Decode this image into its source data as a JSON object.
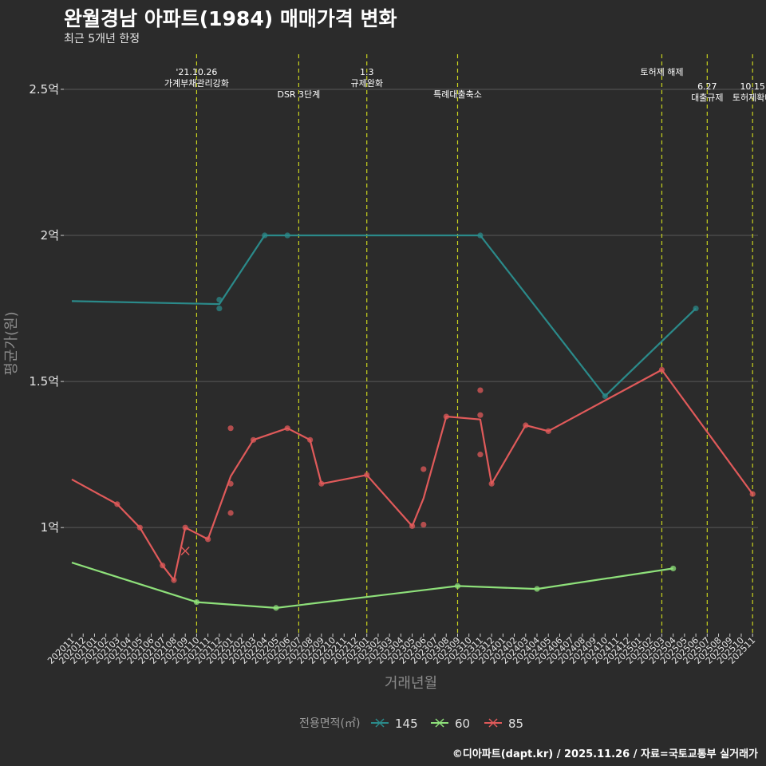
{
  "header": {
    "title": "완월경남 아파트(1984) 매매가격 변화",
    "subtitle": "최근 5개년 한정",
    "caption": "©디아파트(dapt.kr) / 2025.11.26 / 자료=국토교통부 실거래가"
  },
  "colors": {
    "background": "#2b2b2b",
    "grid": "#5a5a5a",
    "event_line": "#c8d21e",
    "s145": "#2b8a8a",
    "s60": "#8ee07a",
    "s85": "#e05a5a"
  },
  "chart_data": {
    "type": "line",
    "title": "완월경남 아파트(1984) 매매가격 변화",
    "subtitle": "최근 5개년 한정",
    "xlabel": "거래년월",
    "ylabel": "평균가(원)",
    "ylim": [
      0.64,
      2.62
    ],
    "y_ticks": [
      {
        "value": 1.0,
        "label": "1억"
      },
      {
        "value": 1.5,
        "label": "1.5억"
      },
      {
        "value": 2.0,
        "label": "2억"
      },
      {
        "value": 2.5,
        "label": "2.5억"
      }
    ],
    "months": [
      "202011",
      "202012",
      "202101",
      "202102",
      "202103",
      "202104",
      "202105",
      "202106",
      "202107",
      "202108",
      "202109",
      "202110",
      "202111",
      "202112",
      "202201",
      "202202",
      "202203",
      "202204",
      "202205",
      "202206",
      "202207",
      "202208",
      "202209",
      "202210",
      "202211",
      "202212",
      "202301",
      "202302",
      "202303",
      "202304",
      "202305",
      "202306",
      "202307",
      "202308",
      "202309",
      "202310",
      "202311",
      "202312",
      "202401",
      "202402",
      "202403",
      "202404",
      "202405",
      "202406",
      "202407",
      "202408",
      "202409",
      "202410",
      "202411",
      "202412",
      "202501",
      "202502",
      "202503",
      "202504",
      "202505",
      "202506",
      "202507",
      "202508",
      "202509",
      "202510",
      "202511"
    ],
    "legend_title": "전용면적(㎡)",
    "events": [
      {
        "month_index": 11,
        "lines": [
          "'21.10.26",
          "가계부채관리강화"
        ],
        "row": 0
      },
      {
        "month_index": 20,
        "lines": [
          "DSR 3단계"
        ],
        "row": 1
      },
      {
        "month_index": 26,
        "lines": [
          "1.3",
          "규제완화"
        ],
        "row": 0
      },
      {
        "month_index": 34,
        "lines": [
          "특례대출축소"
        ],
        "row": 1
      },
      {
        "month_index": 52,
        "lines": [
          "토허제 해제"
        ],
        "row": 0
      },
      {
        "month_index": 56,
        "lines": [
          "6.27",
          "대출규제"
        ],
        "row": 2
      },
      {
        "month_index": 60,
        "lines": [
          "10.15",
          "토허제확대"
        ],
        "row": 2
      }
    ],
    "series": [
      {
        "name": "145",
        "color_key": "s145",
        "line": [
          [
            0,
            1.775
          ],
          [
            13,
            1.765
          ],
          [
            17,
            2.0
          ],
          [
            19,
            2.0
          ],
          [
            36,
            2.0
          ],
          [
            47,
            1.45
          ],
          [
            55,
            1.75
          ]
        ],
        "points": [
          [
            13,
            1.78
          ],
          [
            13,
            1.75
          ],
          [
            17,
            2.0
          ],
          [
            19,
            2.0
          ],
          [
            36,
            2.0
          ],
          [
            47,
            1.45
          ],
          [
            55,
            1.75
          ]
        ],
        "crosses": []
      },
      {
        "name": "60",
        "color_key": "s60",
        "line": [
          [
            0,
            0.88
          ],
          [
            11,
            0.745
          ],
          [
            18,
            0.725
          ],
          [
            34,
            0.8
          ],
          [
            41,
            0.79
          ],
          [
            53,
            0.86
          ]
        ],
        "points": [
          [
            11,
            0.745
          ],
          [
            18,
            0.725
          ],
          [
            34,
            0.8
          ],
          [
            41,
            0.79
          ],
          [
            53,
            0.86
          ]
        ],
        "crosses": []
      },
      {
        "name": "85",
        "color_key": "s85",
        "line": [
          [
            0,
            1.165
          ],
          [
            4,
            1.08
          ],
          [
            6,
            1.0
          ],
          [
            8,
            0.87
          ],
          [
            9,
            0.82
          ],
          [
            10,
            1.0
          ],
          [
            12,
            0.96
          ],
          [
            14,
            1.175
          ],
          [
            16,
            1.3
          ],
          [
            19,
            1.34
          ],
          [
            21,
            1.3
          ],
          [
            22,
            1.15
          ],
          [
            26,
            1.18
          ],
          [
            30,
            1.005
          ],
          [
            31,
            1.1
          ],
          [
            33,
            1.38
          ],
          [
            36,
            1.37
          ],
          [
            37,
            1.15
          ],
          [
            40,
            1.35
          ],
          [
            42,
            1.33
          ],
          [
            52,
            1.54
          ],
          [
            60,
            1.115
          ]
        ],
        "points": [
          [
            4,
            1.08
          ],
          [
            6,
            1.0
          ],
          [
            8,
            0.87
          ],
          [
            9,
            0.82
          ],
          [
            10,
            1.0
          ],
          [
            12,
            0.96
          ],
          [
            14,
            1.34
          ],
          [
            14,
            1.15
          ],
          [
            14,
            1.05
          ],
          [
            16,
            1.3
          ],
          [
            19,
            1.34
          ],
          [
            21,
            1.3
          ],
          [
            22,
            1.15
          ],
          [
            26,
            1.18
          ],
          [
            30,
            1.005
          ],
          [
            31,
            1.2
          ],
          [
            31,
            1.01
          ],
          [
            33,
            1.38
          ],
          [
            36,
            1.47
          ],
          [
            36,
            1.385
          ],
          [
            36,
            1.25
          ],
          [
            37,
            1.15
          ],
          [
            40,
            1.35
          ],
          [
            42,
            1.33
          ],
          [
            52,
            1.54
          ],
          [
            60,
            1.115
          ]
        ],
        "crosses": [
          [
            10,
            0.92
          ]
        ]
      }
    ]
  }
}
